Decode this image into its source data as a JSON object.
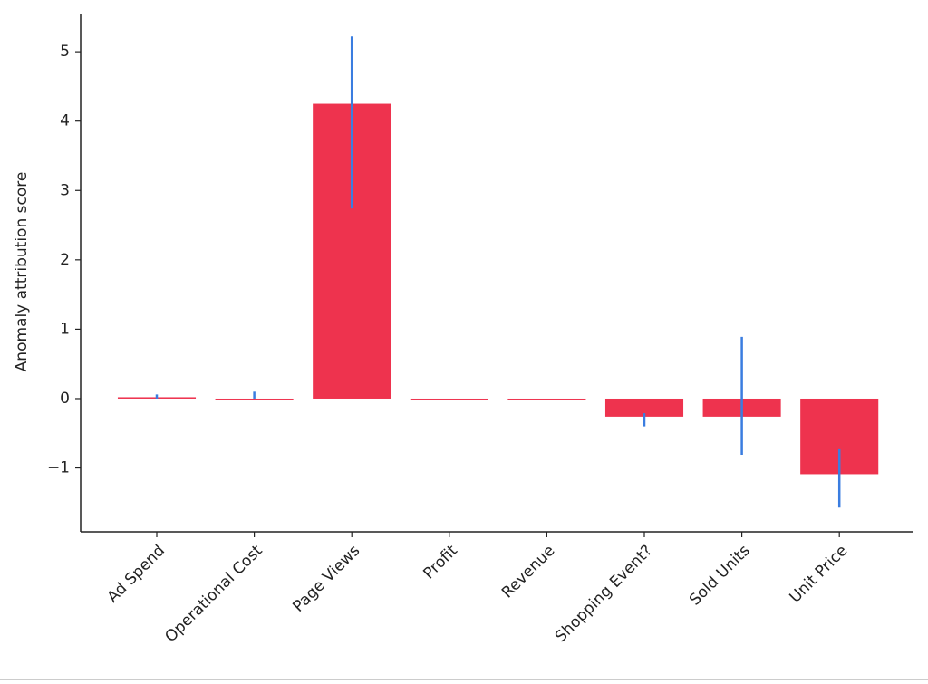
{
  "chart_data": {
    "type": "bar",
    "ylabel": "Anomaly attribution score",
    "categories": [
      "Ad Spend",
      "Operational Cost",
      "Page Views",
      "Profit",
      "Revenue",
      "Shopping Event?",
      "Sold Units",
      "Unit Price"
    ],
    "values": [
      0.02,
      0,
      4.25,
      0,
      0,
      -0.26,
      -0.26,
      -1.09
    ],
    "ci_low": [
      0.0,
      0.0,
      2.74,
      null,
      null,
      -0.4,
      -0.81,
      -1.57
    ],
    "ci_high": [
      0.06,
      0.1,
      5.22,
      null,
      null,
      -0.21,
      0.89,
      -0.73
    ],
    "color": "#ee334e",
    "error_color": "#3a7de0",
    "ylim": [
      -1.92,
      5.55
    ],
    "yticks": [
      {
        "value": -1,
        "label": "−1"
      },
      0,
      1,
      2,
      3,
      4,
      5
    ]
  }
}
